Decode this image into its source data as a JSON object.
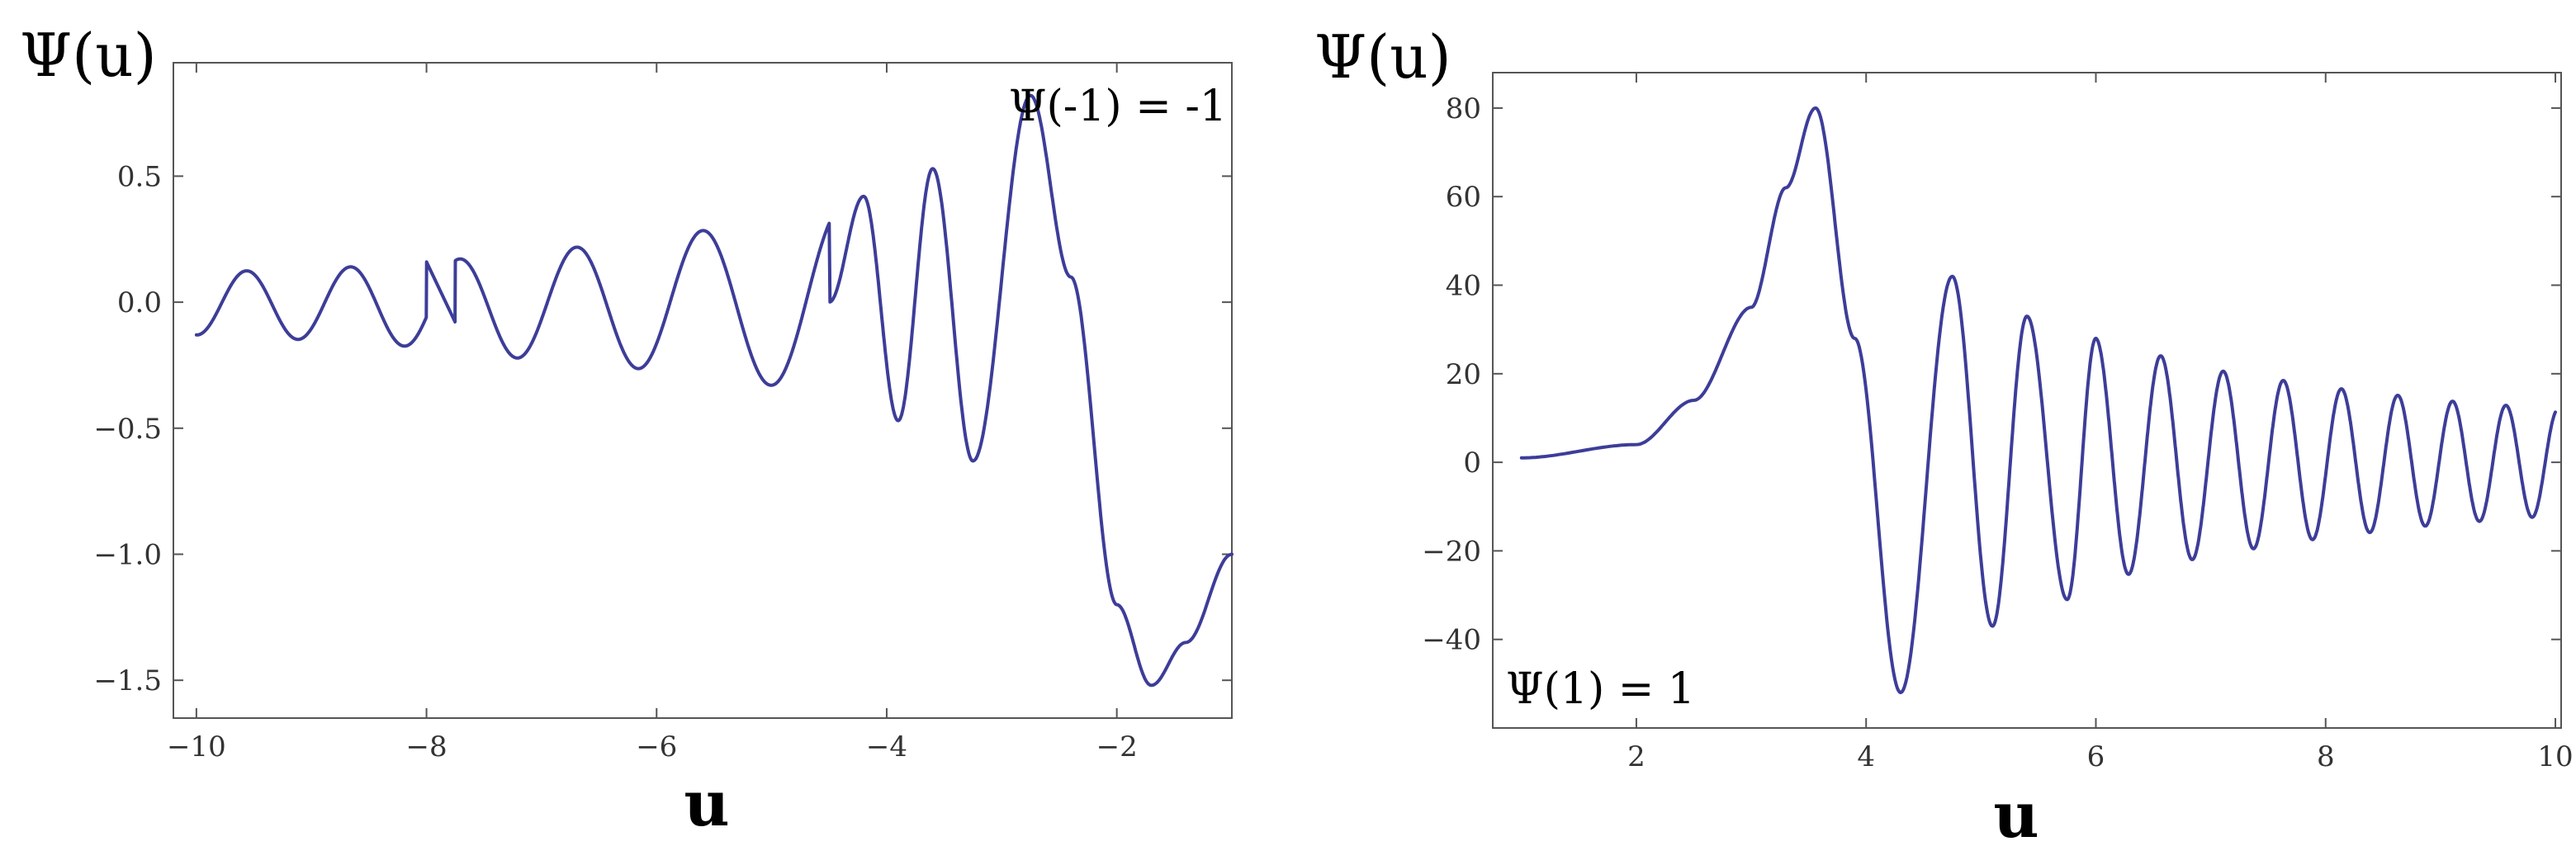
{
  "colors": {
    "curve": "#3d3d99",
    "frame": "#555555"
  },
  "chart_data": [
    {
      "type": "line",
      "title": "",
      "xlabel": "u",
      "ylabel": "Ψ(u)",
      "annotation": "Ψ(-1) = -1",
      "xlim": [
        -10.2,
        -1.0
      ],
      "ylim": [
        -1.65,
        0.95
      ],
      "grid": false,
      "x_ticks": [
        -10,
        -8,
        -6,
        -4,
        -2
      ],
      "x_tick_labels": [
        "−10",
        "−8",
        "−6",
        "−4",
        "−2"
      ],
      "y_ticks": [
        0.5,
        0.0,
        -0.5,
        -1.0,
        -1.5
      ],
      "y_tick_labels": [
        "0.5",
        "0.0",
        "−0.5",
        "−1.0",
        "−1.5"
      ],
      "series": [
        {
          "x": [
            -10.0,
            -9.0,
            -8.0,
            -7.9,
            -7.75,
            -7.0,
            -6.0,
            -5.0,
            -4.5,
            -4.2,
            -3.9,
            -3.6,
            -3.25,
            -2.75,
            -2.4,
            -2.0,
            -1.7,
            -1.4,
            -1.0
          ],
          "y": [
            0.0,
            0.0,
            0.0,
            -0.06,
            -0.07,
            0.0,
            0.0,
            0.0,
            0.0,
            0.42,
            -0.47,
            0.53,
            -0.63,
            0.82,
            0.1,
            -1.2,
            -1.52,
            -1.35,
            -1.0
          ],
          "envelope": {
            "x": [
              -10.0,
              -9.0,
              -8.0,
              -7.75,
              -7.0,
              -6.0,
              -5.0,
              -4.5
            ],
            "upper": [
              0.12,
              0.13,
              0.16,
              0.17,
              0.2,
              0.26,
              0.32,
              0.37
            ],
            "lower": [
              -0.13,
              -0.15,
              -0.18,
              -0.2,
              -0.23,
              -0.27,
              -0.33,
              -0.37
            ]
          }
        }
      ]
    },
    {
      "type": "line",
      "title": "",
      "xlabel": "u",
      "ylabel": "Ψ(u)",
      "annotation": "Ψ(1) = 1",
      "xlim": [
        0.75,
        10.05
      ],
      "ylim": [
        -60,
        88
      ],
      "grid": false,
      "x_ticks": [
        2,
        4,
        6,
        8,
        10
      ],
      "x_tick_labels": [
        "2",
        "4",
        "6",
        "8",
        "10"
      ],
      "y_ticks": [
        80,
        60,
        40,
        20,
        0,
        -20,
        -40
      ],
      "y_tick_labels": [
        "80",
        "60",
        "40",
        "20",
        "0",
        "−20",
        "−40"
      ],
      "series": [
        {
          "x": [
            1.0,
            2.0,
            2.5,
            3.0,
            3.3,
            3.56,
            3.9,
            4.3,
            4.75,
            5.1,
            5.4,
            5.75,
            6.0,
            6.3,
            6.6,
            6.9,
            7.2,
            8.0,
            9.0,
            10.0
          ],
          "y": [
            1.0,
            4.0,
            14.0,
            35.0,
            62.0,
            80.0,
            28.0,
            -52.0,
            42.0,
            -37.0,
            33.0,
            -31.0,
            28.0,
            -27.0,
            25.0,
            -24.0,
            21.0,
            17.0,
            14.0,
            12.0
          ],
          "envelope": {
            "x": [
              6.0,
              7.0,
              8.0,
              9.0,
              10.0
            ],
            "upper": [
              28.0,
              21.0,
              17.0,
              14.0,
              12.0
            ],
            "lower": [
              -27.0,
              -21.0,
              -17.0,
              -14.0,
              -12.0
            ]
          }
        }
      ]
    }
  ]
}
